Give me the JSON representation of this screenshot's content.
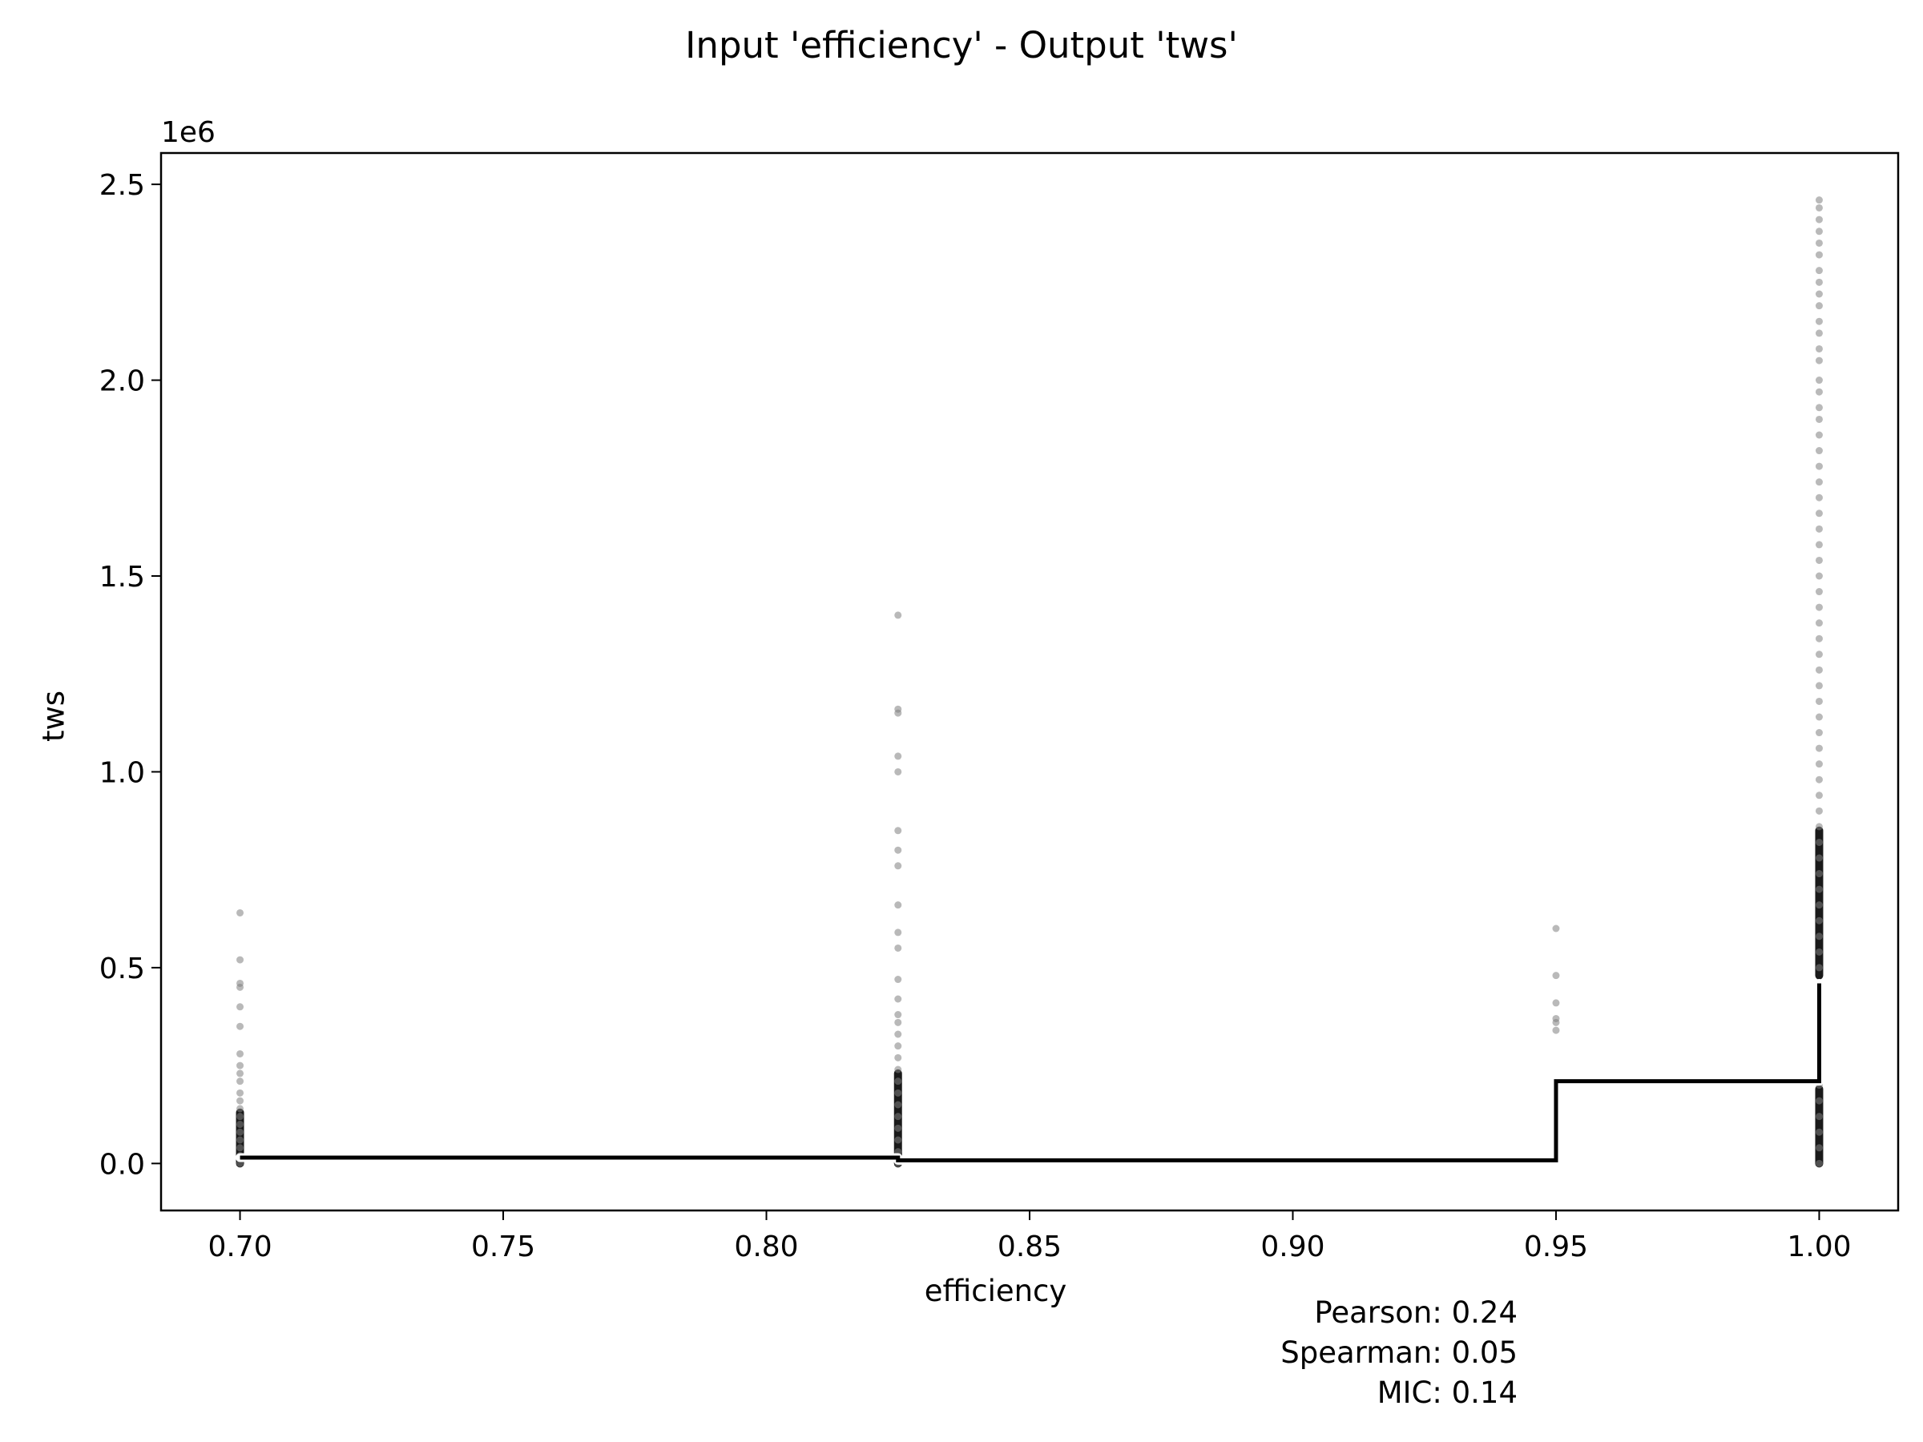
{
  "chart_data": {
    "type": "scatter",
    "title": "Input 'efficiency' - Output 'tws'",
    "xlabel": "efficiency",
    "ylabel": "tws",
    "y_offset_label": "1e6",
    "xlim": [
      0.685,
      1.015
    ],
    "ylim": [
      -0.12,
      2.58
    ],
    "x_ticks": [
      0.7,
      0.75,
      0.8,
      0.85,
      0.9,
      0.95,
      1.0
    ],
    "x_tick_labels": [
      "0.70",
      "0.75",
      "0.80",
      "0.85",
      "0.90",
      "0.95",
      "1.00"
    ],
    "y_ticks": [
      0.0,
      0.5,
      1.0,
      1.5,
      2.0,
      2.5
    ],
    "y_tick_labels": [
      "0.0",
      "0.5",
      "1.0",
      "1.5",
      "2.0",
      "2.5"
    ],
    "grid": false,
    "point_color": "#808080",
    "line_color": "#000000",
    "scatter_points": [
      {
        "x": 0.7,
        "y": [
          0.64,
          0.52,
          0.46,
          0.45,
          0.4,
          0.35,
          0.28,
          0.25,
          0.23,
          0.21,
          0.18,
          0.16,
          0.14,
          0.12,
          0.1,
          0.08,
          0.06,
          0.04,
          0.02,
          0.0
        ]
      },
      {
        "x": 0.825,
        "y": [
          1.4,
          1.16,
          1.15,
          1.04,
          1.0,
          0.85,
          0.8,
          0.76,
          0.66,
          0.59,
          0.55,
          0.47,
          0.42,
          0.38,
          0.36,
          0.33,
          0.3,
          0.27,
          0.24,
          0.21,
          0.18,
          0.15,
          0.12,
          0.09,
          0.06,
          0.03,
          0.0
        ]
      },
      {
        "x": 0.95,
        "y": [
          0.6,
          0.48,
          0.41,
          0.37,
          0.36,
          0.34
        ]
      },
      {
        "x": 1.0,
        "y": [
          2.46,
          2.44,
          2.41,
          2.38,
          2.35,
          2.32,
          2.28,
          2.25,
          2.22,
          2.19,
          2.15,
          2.12,
          2.08,
          2.05,
          2.0,
          1.97,
          1.93,
          1.9,
          1.86,
          1.82,
          1.78,
          1.74,
          1.7,
          1.66,
          1.62,
          1.58,
          1.54,
          1.5,
          1.46,
          1.42,
          1.38,
          1.34,
          1.3,
          1.26,
          1.22,
          1.18,
          1.14,
          1.1,
          1.06,
          1.02,
          0.98,
          0.94,
          0.9,
          0.86,
          0.82,
          0.78,
          0.74,
          0.7,
          0.66,
          0.62,
          0.58,
          0.54,
          0.5,
          0.2,
          0.16,
          0.12,
          0.08,
          0.04,
          0.0
        ]
      }
    ],
    "dense_bands": [
      {
        "x": 0.7,
        "y_min": 0.0,
        "y_max": 0.13
      },
      {
        "x": 0.825,
        "y_min": 0.0,
        "y_max": 0.23
      },
      {
        "x": 1.0,
        "y_min": 0.48,
        "y_max": 0.85
      },
      {
        "x": 1.0,
        "y_min": 0.0,
        "y_max": 0.19
      }
    ],
    "step_line": {
      "x": [
        0.7,
        0.825,
        0.825,
        0.95,
        0.95,
        1.0,
        1.0
      ],
      "y": [
        0.015,
        0.015,
        0.008,
        0.008,
        0.21,
        0.21,
        0.46
      ]
    },
    "annotations": [
      "Pearson: 0.24",
      "Spearman: 0.05",
      "MIC: 0.14"
    ]
  }
}
